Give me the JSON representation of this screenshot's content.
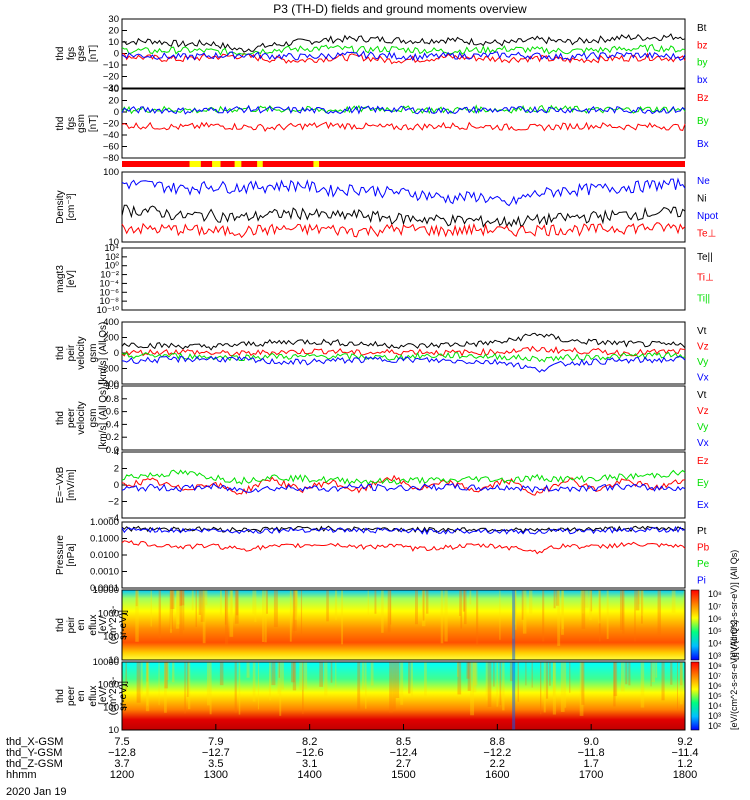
{
  "title": "P3 (TH-D) fields and ground moments overview",
  "date_label": "2020 Jan 19",
  "colors": {
    "black": "#000000",
    "red": "#ff0000",
    "green": "#00e000",
    "blue": "#0000ff",
    "yellow": "#ffff00",
    "darkred": "#b00000",
    "axis": "#000000"
  },
  "chart_data": [
    {
      "type": "line",
      "id": "fgs_gse",
      "ylabel": [
        "thd",
        "fgs",
        "gse",
        "[nT]"
      ],
      "yticks": [
        "30",
        "20",
        "10",
        "0",
        "−10",
        "−20",
        "−30"
      ],
      "ylim": [
        -30,
        30
      ],
      "series": [
        {
          "name": "Bt",
          "color": "#000000",
          "values": [
            10,
            11,
            8,
            9,
            3,
            7,
            10,
            12,
            13,
            12,
            11,
            12,
            10,
            9,
            12,
            10,
            12,
            14,
            14,
            15
          ]
        },
        {
          "name": "bz",
          "color": "#ff0000",
          "values": [
            -2,
            -4,
            -5,
            -3,
            -2,
            -5,
            -6,
            -4,
            -3,
            -6,
            -5,
            -3,
            -4,
            -5,
            -4,
            -6,
            -5,
            -4,
            -3,
            -5
          ]
        },
        {
          "name": "by",
          "color": "#00e000",
          "values": [
            3,
            2,
            3,
            2,
            1,
            3,
            4,
            5,
            3,
            4,
            3,
            2,
            3,
            4,
            3,
            2,
            3,
            4,
            5,
            3
          ]
        },
        {
          "name": "bx",
          "color": "#0000ff",
          "values": [
            -1,
            -2,
            -3,
            -2,
            -1,
            -2,
            -3,
            -2,
            -1,
            -2,
            -3,
            -2,
            -2,
            -1,
            -2,
            -3,
            -2,
            -1,
            -2,
            -3
          ]
        }
      ]
    },
    {
      "type": "line",
      "id": "fgs_gsm",
      "ylabel": [
        "thd",
        "fgs",
        "gsm",
        "[nT]"
      ],
      "yticks": [
        "40",
        "20",
        "0",
        "−20",
        "−40",
        "−60",
        "−80"
      ],
      "ylim": [
        -90,
        40
      ],
      "series": [
        {
          "name": "Bz",
          "color": "#ff0000",
          "values": [
            -28,
            -30,
            -32,
            -29,
            -31,
            -33,
            -30,
            -28,
            -30,
            -32,
            -31,
            -29,
            -30,
            -32,
            -33,
            -30,
            -29,
            -31,
            -30,
            -32
          ]
        },
        {
          "name": "By",
          "color": "#00e000",
          "values": [
            0,
            2,
            1,
            -1,
            3,
            2,
            1,
            0,
            2,
            3,
            1,
            0,
            2,
            1,
            3,
            2,
            0,
            1,
            2,
            1
          ]
        },
        {
          "name": "Bx",
          "color": "#0000ff",
          "values": [
            0,
            1,
            -1,
            0,
            2,
            1,
            0,
            -1,
            1,
            2,
            0,
            -1,
            1,
            0,
            2,
            1,
            0,
            1,
            0,
            1
          ]
        }
      ]
    },
    {
      "type": "line",
      "id": "density",
      "ylabel": [
        "Density",
        "[cm⁻³]"
      ],
      "yticks": [
        "100",
        "10"
      ],
      "log": true,
      "ylim": [
        4,
        300
      ],
      "series": [
        {
          "name": "Ne",
          "color": "#0000ff",
          "values": [
            150,
            140,
            110,
            130,
            120,
            130,
            140,
            100,
            110,
            90,
            80,
            60,
            70,
            40,
            80,
            100,
            110,
            120,
            140,
            150
          ]
        },
        {
          "name": "Ni",
          "color": "#000000",
          "values": [
            30,
            28,
            20,
            22,
            18,
            22,
            25,
            20,
            22,
            18,
            17,
            16,
            15,
            14,
            16,
            18,
            20,
            22,
            25,
            26
          ]
        },
        {
          "name": "Npot",
          "color": "#0000ff",
          "values": []
        },
        {
          "name": "Te⊥",
          "color": "#ff0000",
          "values": [
            10,
            9,
            9,
            8,
            8,
            9,
            9,
            9,
            8,
            9,
            9,
            8,
            9,
            8,
            9,
            9,
            9,
            10,
            10,
            10
          ]
        }
      ]
    },
    {
      "type": "line",
      "id": "temperature",
      "ylabel": [
        "magt3",
        "[eV]"
      ],
      "yticks": [
        "10⁴",
        "10²",
        "10⁰",
        "10⁻²",
        "10⁻⁴",
        "10⁻⁶",
        "10⁻⁸",
        "10⁻¹⁰"
      ],
      "series": [
        {
          "name": "Te||",
          "color": "#000000",
          "values": []
        },
        {
          "name": "Ti⊥",
          "color": "#ff0000",
          "values": []
        },
        {
          "name": "Ti||",
          "color": "#00e000",
          "values": []
        }
      ]
    },
    {
      "type": "line",
      "id": "velocity_i",
      "ylabel": [
        "thd",
        "peir",
        "velocity",
        "gsm",
        "[km/s] (All Qs)"
      ],
      "yticks": [
        "400",
        "200",
        "0",
        "−200",
        "−400"
      ],
      "ylim": [
        -400,
        400
      ],
      "series": [
        {
          "name": "Vt",
          "color": "#000000",
          "values": [
            120,
            100,
            90,
            80,
            110,
            130,
            150,
            140,
            120,
            100,
            90,
            110,
            120,
            150,
            250,
            160,
            140,
            120,
            110,
            100
          ]
        },
        {
          "name": "Vz",
          "color": "#ff0000",
          "values": [
            0,
            10,
            20,
            0,
            -10,
            10,
            20,
            30,
            0,
            10,
            20,
            0,
            10,
            20,
            50,
            30,
            20,
            0,
            10,
            20
          ]
        },
        {
          "name": "Vy",
          "color": "#00e000",
          "values": [
            -40,
            -30,
            -40,
            -50,
            -60,
            -40,
            -50,
            -40,
            -50,
            -60,
            -40,
            -30,
            -40,
            -50,
            -80,
            -60,
            -50,
            -40,
            -30,
            -40
          ]
        },
        {
          "name": "Vx",
          "color": "#0000ff",
          "values": [
            -100,
            -90,
            -80,
            -70,
            -90,
            -110,
            -120,
            -100,
            -90,
            -80,
            -90,
            -100,
            -110,
            -120,
            -220,
            -130,
            -110,
            -100,
            -90,
            -80
          ]
        }
      ]
    },
    {
      "type": "line",
      "id": "velocity_e",
      "ylabel": [
        "thd",
        "peer",
        "velocity",
        "gsm",
        "[km/s] (All Qs)"
      ],
      "yticks": [
        "1.0",
        "0.8",
        "0.6",
        "0.4",
        "0.2",
        "0.0"
      ],
      "ylim": [
        0,
        1
      ],
      "series": [
        {
          "name": "Vt",
          "color": "#000000",
          "values": []
        },
        {
          "name": "Vz",
          "color": "#ff0000",
          "values": []
        },
        {
          "name": "Vy",
          "color": "#00e000",
          "values": []
        },
        {
          "name": "Vx",
          "color": "#0000ff",
          "values": []
        }
      ]
    },
    {
      "type": "line",
      "id": "efield",
      "ylabel": [
        "E=−VxB",
        "[mV/m]"
      ],
      "yticks": [
        "4",
        "2",
        "0",
        "−2",
        "−4"
      ],
      "ylim": [
        -4,
        4
      ],
      "series": [
        {
          "name": "Ez",
          "color": "#ff0000",
          "values": [
            0,
            0.5,
            -0.5,
            0.2,
            -1,
            0.8,
            -0.6,
            0.4,
            -0.8,
            1,
            -0.5,
            0.3,
            -0.7,
            0.6,
            -1.2,
            0.8,
            -0.6,
            0.5,
            -0.4,
            0.6
          ]
        },
        {
          "name": "Ey",
          "color": "#00e000",
          "values": [
            1,
            1.2,
            1.5,
            1,
            0.5,
            1,
            0.8,
            0.6,
            0.5,
            0.4,
            0.6,
            0.5,
            0.8,
            0.6,
            0.9,
            0.7,
            0.8,
            1,
            1.2,
            1.5
          ]
        },
        {
          "name": "Ex",
          "color": "#0000ff",
          "values": [
            -0.5,
            -0.3,
            -0.4,
            -0.2,
            -0.6,
            -0.4,
            -0.3,
            -0.5,
            -0.2,
            -0.4,
            -0.3,
            -0.2,
            -0.4,
            -0.3,
            -0.5,
            -0.4,
            -0.3,
            -0.2,
            -0.4,
            -0.3
          ]
        }
      ]
    },
    {
      "type": "line",
      "id": "pressure",
      "ylabel": [
        "Pressure",
        "[nPa]"
      ],
      "yticks": [
        "1.0000",
        "0.1000",
        "0.0100",
        "0.0010",
        "0.0001"
      ],
      "log": true,
      "ylim": [
        0.0001,
        1.5
      ],
      "series": [
        {
          "name": "Pt",
          "color": "#000000",
          "values": [
            0.6,
            0.6,
            0.55,
            0.55,
            0.5,
            0.55,
            0.6,
            0.6,
            0.55,
            0.55,
            0.5,
            0.5,
            0.55,
            0.5,
            0.45,
            0.5,
            0.55,
            0.6,
            0.6,
            0.65
          ]
        },
        {
          "name": "Pb",
          "color": "#ff0000",
          "values": [
            0.08,
            0.06,
            0.04,
            0.05,
            0.03,
            0.04,
            0.05,
            0.06,
            0.04,
            0.05,
            0.03,
            0.04,
            0.05,
            0.04,
            0.02,
            0.05,
            0.04,
            0.06,
            0.05,
            0.04
          ]
        },
        {
          "name": "Pe",
          "color": "#00e000",
          "values": []
        },
        {
          "name": "Pi",
          "color": "#0000ff",
          "values": [
            0.5,
            0.5,
            0.45,
            0.45,
            0.4,
            0.45,
            0.5,
            0.5,
            0.45,
            0.45,
            0.4,
            0.4,
            0.45,
            0.4,
            0.38,
            0.4,
            0.45,
            0.5,
            0.5,
            0.55
          ]
        }
      ]
    },
    {
      "type": "heatmap",
      "id": "ion_spectrogram",
      "ylabel": [
        "thd",
        "peir",
        "en",
        "eflux",
        "[eV/",
        "(cm^2-s-",
        "sr-eV)]"
      ],
      "yticks": [
        "10000",
        "1000",
        "100",
        "10"
      ],
      "colorbar_ticks": [
        "10⁸",
        "10⁷",
        "10⁶",
        "10⁵",
        "10⁴",
        "10³"
      ],
      "colorbar_label": "[eV/(cm^2-s-sr-eV)] (All Qs)"
    },
    {
      "type": "heatmap",
      "id": "electron_spectrogram",
      "ylabel": [
        "thd",
        "peer",
        "en",
        "eflux",
        "[eV/",
        "(cm^2-s-",
        "sr-eV)]"
      ],
      "yticks": [
        "10000",
        "1000",
        "100",
        "10"
      ],
      "colorbar_ticks": [
        "10⁸",
        "10⁷",
        "10⁶",
        "10⁵",
        "10⁴",
        "10³",
        "10²"
      ],
      "colorbar_label": "[eV/(cm^2-s-sr-eV)] (All Qs)"
    }
  ],
  "x_axis": {
    "row_labels": [
      "thd_X-GSM",
      "thd_Y-GSM",
      "thd_Z-GSM",
      "hhmm"
    ],
    "rows": [
      [
        "7.5",
        "7.9",
        "8.2",
        "8.5",
        "8.8",
        "9.0",
        "9.2"
      ],
      [
        "−12.8",
        "−12.7",
        "−12.6",
        "−12.4",
        "−12.2",
        "−11.8",
        "−11.4"
      ],
      [
        "3.7",
        "3.5",
        "3.1",
        "2.7",
        "2.2",
        "1.7",
        "1.2"
      ],
      [
        "1200",
        "1300",
        "1400",
        "1500",
        "1600",
        "1700",
        "1800"
      ]
    ]
  }
}
